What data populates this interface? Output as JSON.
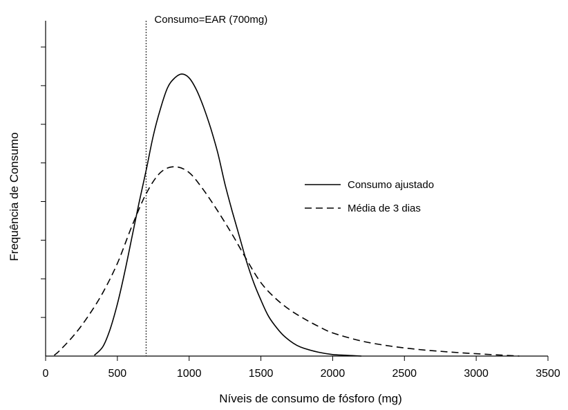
{
  "chart_data": {
    "type": "line",
    "title": "",
    "xlabel": "Níveis de consumo de fósforo (mg)",
    "ylabel": "Frequência de Consumo",
    "xlim": [
      0,
      3500
    ],
    "ylim": [
      0,
      8
    ],
    "x_ticks": [
      0,
      500,
      1000,
      1500,
      2000,
      2500,
      3000,
      3500
    ],
    "x_tick_labels": [
      "0",
      "500",
      "1000",
      "1500",
      "2000",
      "2500",
      "3000",
      "3500"
    ],
    "y_ticks": [
      1,
      2,
      3,
      4,
      5,
      6,
      7,
      8
    ],
    "y_tick_labels_shown": false,
    "grid": false,
    "legend_position": "center-right",
    "reference_line": {
      "x": 700,
      "label": "Consumo=EAR (700mg)",
      "style": "dotted"
    },
    "series": [
      {
        "name": "Consumo ajustado",
        "style": "solid",
        "color": "#000000",
        "x": [
          340,
          400,
          450,
          500,
          550,
          600,
          650,
          700,
          750,
          800,
          850,
          900,
          950,
          1000,
          1050,
          1100,
          1150,
          1200,
          1250,
          1300,
          1350,
          1400,
          1450,
          1500,
          1550,
          1600,
          1650,
          1700,
          1750,
          1800,
          1900,
          2000,
          2100,
          2200
        ],
        "y": [
          0.02,
          0.25,
          0.7,
          1.35,
          2.15,
          3.05,
          3.95,
          4.8,
          5.7,
          6.4,
          6.95,
          7.2,
          7.3,
          7.2,
          6.9,
          6.45,
          5.9,
          5.25,
          4.45,
          3.75,
          3.1,
          2.45,
          1.9,
          1.45,
          1.05,
          0.78,
          0.56,
          0.4,
          0.28,
          0.2,
          0.1,
          0.04,
          0.02,
          0.0
        ]
      },
      {
        "name": "Média de 3 dias",
        "style": "dashed",
        "color": "#000000",
        "x": [
          60,
          100,
          200,
          300,
          400,
          500,
          600,
          700,
          800,
          900,
          1000,
          1100,
          1200,
          1300,
          1400,
          1500,
          1600,
          1700,
          1800,
          1900,
          2000,
          2200,
          2400,
          2600,
          2800,
          3000,
          3200,
          3300
        ],
        "y": [
          0.02,
          0.15,
          0.55,
          1.05,
          1.65,
          2.4,
          3.35,
          4.2,
          4.75,
          4.9,
          4.75,
          4.3,
          3.75,
          3.15,
          2.5,
          1.9,
          1.5,
          1.2,
          0.97,
          0.77,
          0.6,
          0.39,
          0.26,
          0.17,
          0.11,
          0.06,
          0.02,
          0.0
        ]
      }
    ]
  }
}
